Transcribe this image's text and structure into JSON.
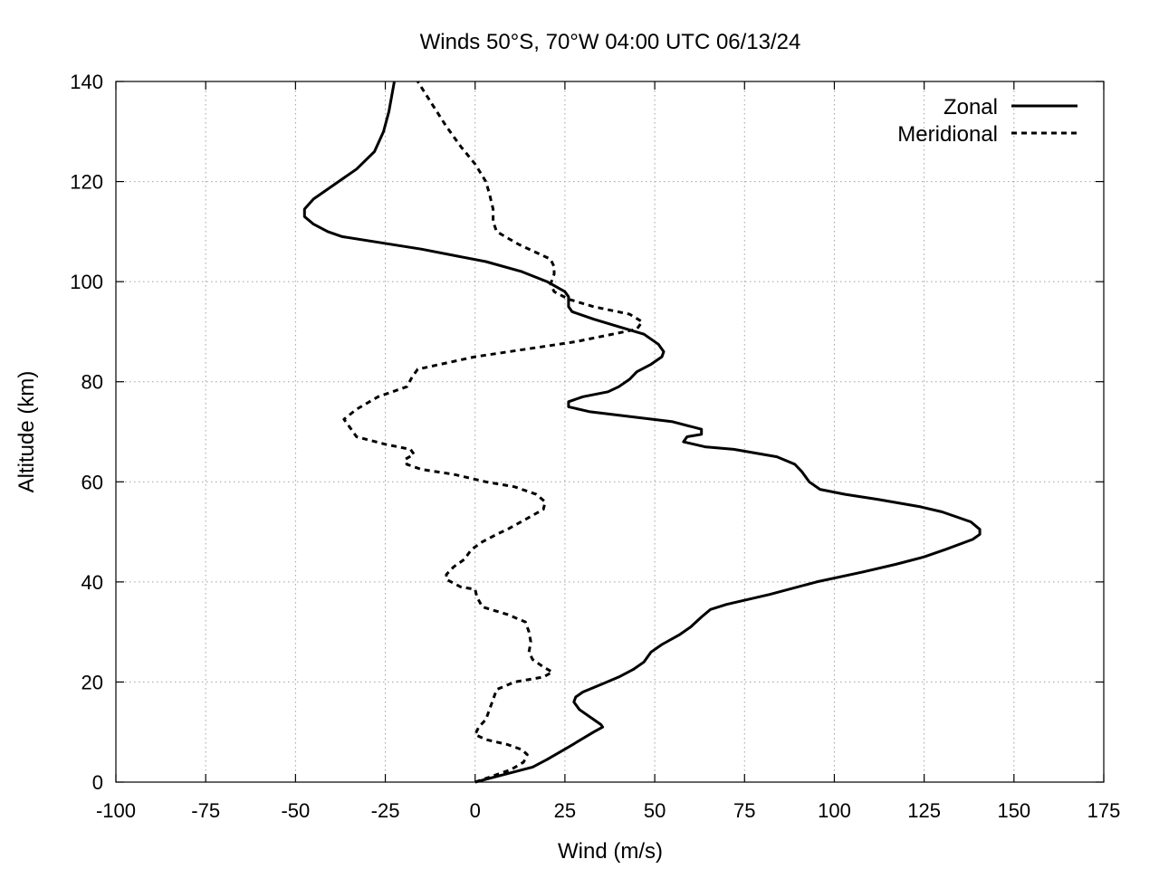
{
  "chart_data": {
    "type": "line",
    "title": "Winds 50°S, 70°W 04:00 UTC 06/13/24",
    "xlabel": "Wind (m/s)",
    "ylabel": "Altitude (km)",
    "xlim": [
      -100,
      175
    ],
    "ylim": [
      0,
      140
    ],
    "x_ticks": [
      -100,
      -75,
      -50,
      -25,
      0,
      25,
      50,
      75,
      100,
      125,
      150,
      175
    ],
    "y_ticks": [
      0,
      20,
      40,
      60,
      80,
      100,
      120,
      140
    ],
    "grid": true,
    "legend_position": "top-right",
    "series": [
      {
        "name": "Zonal",
        "style": "solid",
        "color": "#000000",
        "points": [
          [
            0,
            0
          ],
          [
            8,
            1.5
          ],
          [
            16,
            3
          ],
          [
            20,
            4.5
          ],
          [
            26,
            7
          ],
          [
            33,
            10
          ],
          [
            35.5,
            11
          ],
          [
            35,
            11.5
          ],
          [
            32,
            13
          ],
          [
            29,
            14.5
          ],
          [
            27.5,
            16
          ],
          [
            28,
            17
          ],
          [
            30,
            18
          ],
          [
            35,
            19.5
          ],
          [
            40,
            21
          ],
          [
            44,
            22.5
          ],
          [
            47,
            24
          ],
          [
            49,
            26
          ],
          [
            52,
            27.5
          ],
          [
            57,
            29.5
          ],
          [
            60,
            31
          ],
          [
            63,
            33
          ],
          [
            65.5,
            34.5
          ],
          [
            70,
            35.5
          ],
          [
            82,
            37.5
          ],
          [
            95,
            40
          ],
          [
            108,
            42
          ],
          [
            117,
            43.5
          ],
          [
            125,
            45
          ],
          [
            131,
            46.5
          ],
          [
            138.5,
            48.5
          ],
          [
            140.5,
            49.5
          ],
          [
            140.5,
            50.5
          ],
          [
            138,
            52
          ],
          [
            130,
            54
          ],
          [
            124,
            55
          ],
          [
            112,
            56.5
          ],
          [
            103,
            57.5
          ],
          [
            96,
            58.5
          ],
          [
            93,
            60
          ],
          [
            91,
            62
          ],
          [
            89,
            63.5
          ],
          [
            84,
            65
          ],
          [
            72,
            66.5
          ],
          [
            64,
            67
          ],
          [
            58,
            68
          ],
          [
            59,
            69
          ],
          [
            63,
            69.5
          ],
          [
            63,
            70.5
          ],
          [
            55,
            72
          ],
          [
            32,
            74
          ],
          [
            26,
            75
          ],
          [
            26,
            76
          ],
          [
            30,
            77
          ],
          [
            37,
            78
          ],
          [
            40,
            79
          ],
          [
            43,
            80.5
          ],
          [
            45,
            82
          ],
          [
            49,
            83.5
          ],
          [
            52,
            85
          ],
          [
            52.5,
            86
          ],
          [
            51,
            87.5
          ],
          [
            47,
            89.5
          ],
          [
            40,
            91
          ],
          [
            33,
            92.5
          ],
          [
            27,
            94
          ],
          [
            26,
            95
          ],
          [
            26,
            97
          ],
          [
            25,
            98
          ],
          [
            20,
            100
          ],
          [
            13,
            102
          ],
          [
            3,
            104
          ],
          [
            -15,
            106.5
          ],
          [
            -37,
            109
          ],
          [
            -41,
            110
          ],
          [
            -45,
            111.5
          ],
          [
            -47.5,
            113
          ],
          [
            -47.5,
            114.5
          ],
          [
            -45,
            116.5
          ],
          [
            -40,
            119
          ],
          [
            -33,
            122.5
          ],
          [
            -28,
            126
          ],
          [
            -25.5,
            130
          ],
          [
            -24,
            134
          ],
          [
            -23,
            138
          ],
          [
            -22.5,
            140
          ]
        ]
      },
      {
        "name": "Meridional",
        "style": "dashed",
        "color": "#000000",
        "points": [
          [
            0,
            0
          ],
          [
            4,
            1
          ],
          [
            10,
            2.5
          ],
          [
            13.5,
            4
          ],
          [
            14.5,
            5.5
          ],
          [
            13,
            6.5
          ],
          [
            9,
            7.5
          ],
          [
            3,
            8.5
          ],
          [
            0,
            9.5
          ],
          [
            1,
            11
          ],
          [
            3,
            12.5
          ],
          [
            4,
            14.5
          ],
          [
            5,
            16.5
          ],
          [
            6,
            18.5
          ],
          [
            11,
            20
          ],
          [
            19,
            21
          ],
          [
            21.5,
            22
          ],
          [
            19,
            23
          ],
          [
            16,
            24.5
          ],
          [
            15,
            26
          ],
          [
            15.5,
            28
          ],
          [
            15,
            30
          ],
          [
            14,
            32
          ],
          [
            9,
            33.5
          ],
          [
            2,
            35
          ],
          [
            0.5,
            37
          ],
          [
            0,
            38.5
          ],
          [
            -4,
            39
          ],
          [
            -8,
            40.5
          ],
          [
            -8,
            41.5
          ],
          [
            -6,
            43
          ],
          [
            -3,
            44.5
          ],
          [
            -1,
            46.5
          ],
          [
            2,
            48
          ],
          [
            6,
            49.5
          ],
          [
            9,
            50.5
          ],
          [
            14,
            52.5
          ],
          [
            19,
            54.5
          ],
          [
            19.5,
            56
          ],
          [
            17,
            57.5
          ],
          [
            11,
            59
          ],
          [
            3,
            60
          ],
          [
            -6,
            61.5
          ],
          [
            -15,
            62.5
          ],
          [
            -19,
            63.5
          ],
          [
            -19.5,
            64.5
          ],
          [
            -17,
            65.5
          ],
          [
            -18,
            66.5
          ],
          [
            -25,
            67.5
          ],
          [
            -33,
            69
          ],
          [
            -35,
            71
          ],
          [
            -36.5,
            72.5
          ],
          [
            -33,
            74.5
          ],
          [
            -27,
            77
          ],
          [
            -19,
            79
          ],
          [
            -17.5,
            81
          ],
          [
            -16,
            82.5
          ],
          [
            0,
            85
          ],
          [
            28,
            88
          ],
          [
            45,
            90.5
          ],
          [
            46.5,
            92
          ],
          [
            43,
            93.5
          ],
          [
            33,
            95
          ],
          [
            26,
            96.5
          ],
          [
            22,
            98
          ],
          [
            21,
            99.5
          ],
          [
            22,
            101.5
          ],
          [
            22,
            103
          ],
          [
            21,
            104.5
          ],
          [
            12,
            107.5
          ],
          [
            6,
            110
          ],
          [
            5,
            112
          ],
          [
            5,
            114.5
          ],
          [
            4,
            117.5
          ],
          [
            3,
            120
          ],
          [
            0,
            123.5
          ],
          [
            -4,
            127
          ],
          [
            -8,
            131
          ],
          [
            -12,
            135.5
          ],
          [
            -16,
            140
          ]
        ]
      }
    ]
  }
}
